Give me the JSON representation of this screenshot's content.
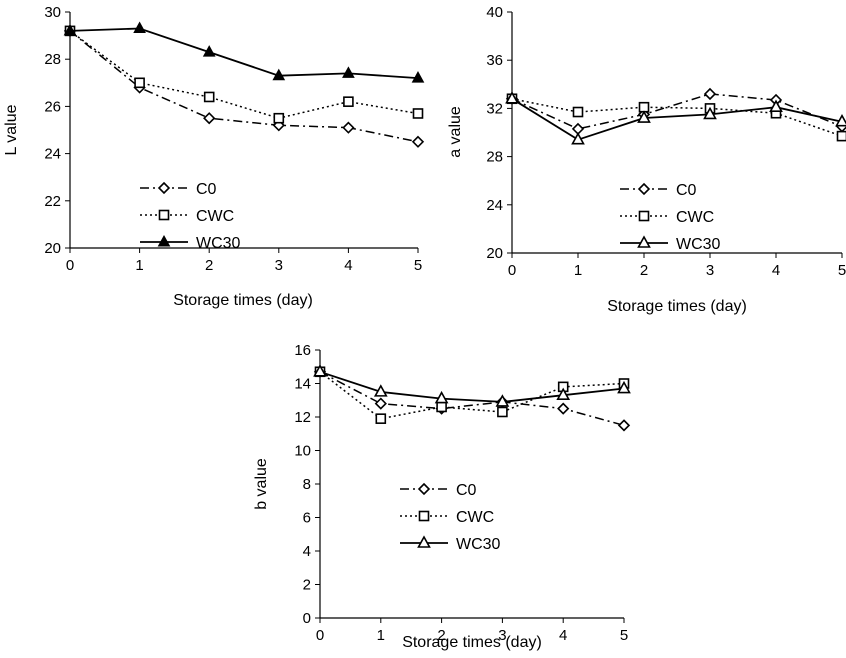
{
  "chart_data": [
    {
      "type": "line",
      "xlabel": "Storage times (day)",
      "ylabel": "L value",
      "ylim": [
        20,
        30
      ],
      "yticks": [
        20,
        22,
        24,
        26,
        28,
        30
      ],
      "x": [
        0,
        1,
        2,
        3,
        4,
        5
      ],
      "grid": false,
      "legend_position": "left-center",
      "series": [
        {
          "name": "C0",
          "values": [
            29.2,
            26.8,
            25.5,
            25.2,
            25.1,
            24.5
          ],
          "style": "dashdot",
          "marker": "diamond-open"
        },
        {
          "name": "CWC",
          "values": [
            29.2,
            27.0,
            26.4,
            25.5,
            26.2,
            25.7
          ],
          "style": "dotted",
          "marker": "square-open"
        },
        {
          "name": "WC30",
          "values": [
            29.2,
            29.3,
            28.3,
            27.3,
            27.4,
            27.2
          ],
          "style": "solid",
          "marker": "triangle-filled"
        }
      ]
    },
    {
      "type": "line",
      "xlabel": "Storage times (day)",
      "ylabel": "a value",
      "ylim": [
        20,
        40
      ],
      "yticks": [
        20,
        24,
        28,
        32,
        36,
        40
      ],
      "x": [
        0,
        1,
        2,
        3,
        4,
        5
      ],
      "grid": false,
      "legend_position": "left-center",
      "series": [
        {
          "name": "C0",
          "values": [
            32.8,
            30.3,
            31.5,
            33.2,
            32.7,
            30.5
          ],
          "style": "dashdot",
          "marker": "diamond-open"
        },
        {
          "name": "CWC",
          "values": [
            32.8,
            31.7,
            32.1,
            32.0,
            31.6,
            29.7
          ],
          "style": "dotted",
          "marker": "square-open"
        },
        {
          "name": "WC30",
          "values": [
            32.8,
            29.4,
            31.2,
            31.5,
            32.1,
            30.9
          ],
          "style": "solid",
          "marker": "triangle-open"
        }
      ]
    },
    {
      "type": "line",
      "xlabel": "Storage times (day)",
      "ylabel": "b value",
      "ylim": [
        0,
        16
      ],
      "yticks": [
        0,
        2,
        4,
        6,
        8,
        10,
        12,
        14,
        16
      ],
      "x": [
        0,
        1,
        2,
        3,
        4,
        5
      ],
      "grid": false,
      "legend_position": "center",
      "series": [
        {
          "name": "C0",
          "values": [
            14.7,
            12.8,
            12.5,
            12.9,
            12.5,
            11.5
          ],
          "style": "dashdot",
          "marker": "diamond-open"
        },
        {
          "name": "CWC",
          "values": [
            14.7,
            11.9,
            12.6,
            12.3,
            13.8,
            14.0
          ],
          "style": "dotted",
          "marker": "square-open"
        },
        {
          "name": "WC30",
          "values": [
            14.7,
            13.5,
            13.1,
            12.9,
            13.3,
            13.7
          ],
          "style": "solid",
          "marker": "triangle-open"
        }
      ]
    }
  ]
}
